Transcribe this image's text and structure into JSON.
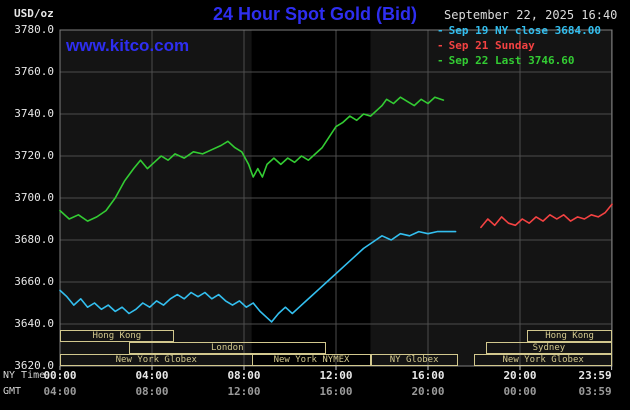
{
  "header": {
    "units": "USD/oz",
    "title": "24 Hour Spot Gold (Bid)",
    "site": "www.kitco.com",
    "datetime": "September 22, 2025 16:40"
  },
  "colors": {
    "background": "#000000",
    "title_blue": "#2e2ef0",
    "link_blue": "#2e2ef0",
    "date_text": "#dcdcdc",
    "axis_text": "#e8e8e8",
    "gmt_text": "#9a9a9a",
    "caption_text": "#d5d5d5",
    "session_tan": "#d2c88e",
    "grid": "#4d4d4d",
    "border": "#7e7e7e",
    "tick": "#c8c8c8",
    "plot_bg": "#141414",
    "nymex_band": "#000000"
  },
  "chart_data": {
    "type": "line",
    "title": "24 Hour Spot Gold (Bid)",
    "ylabel": "USD/oz",
    "ylim": [
      3620,
      3780
    ],
    "xlim_hours": [
      0,
      24
    ],
    "grid": true,
    "legend_position": "top-right",
    "legend_marker": "-",
    "y_ticks": [
      {
        "value": 3780,
        "label": "3780.0"
      },
      {
        "value": 3760,
        "label": "3760.0"
      },
      {
        "value": 3740,
        "label": "3740.0"
      },
      {
        "value": 3720,
        "label": "3720.0"
      },
      {
        "value": 3700,
        "label": "3700.0"
      },
      {
        "value": 3680,
        "label": "3680.0"
      },
      {
        "value": 3660,
        "label": "3660.0"
      },
      {
        "value": 3640,
        "label": "3640.0"
      },
      {
        "value": 3620,
        "label": "3620.0"
      }
    ],
    "x_axis_row_labels": [
      "NY Time",
      "GMT"
    ],
    "x_ticks": [
      {
        "hour": 0,
        "ny": "00:00",
        "gmt": "04:00"
      },
      {
        "hour": 4,
        "ny": "04:00",
        "gmt": "08:00"
      },
      {
        "hour": 8,
        "ny": "08:00",
        "gmt": "12:00"
      },
      {
        "hour": 12,
        "ny": "12:00",
        "gmt": "16:00"
      },
      {
        "hour": 16,
        "ny": "16:00",
        "gmt": "20:00"
      },
      {
        "hour": 20,
        "ny": "20:00",
        "gmt": "00:00"
      },
      {
        "hour": 23.983,
        "ny": "23:59",
        "gmt": "03:59"
      }
    ],
    "nymex_band_hours": [
      8.33,
      13.5
    ],
    "series": [
      {
        "name": "Sep 19",
        "legend_label": "Sep 19 NY close 3684.00",
        "color": "#33bfef",
        "points": [
          [
            0,
            3656
          ],
          [
            0.3,
            3653
          ],
          [
            0.6,
            3649
          ],
          [
            0.9,
            3652
          ],
          [
            1.2,
            3648
          ],
          [
            1.5,
            3650
          ],
          [
            1.8,
            3647
          ],
          [
            2.1,
            3649
          ],
          [
            2.4,
            3646
          ],
          [
            2.7,
            3648
          ],
          [
            3,
            3645
          ],
          [
            3.3,
            3647
          ],
          [
            3.6,
            3650
          ],
          [
            3.9,
            3648
          ],
          [
            4.2,
            3651
          ],
          [
            4.5,
            3649
          ],
          [
            4.8,
            3652
          ],
          [
            5.1,
            3654
          ],
          [
            5.4,
            3652
          ],
          [
            5.7,
            3655
          ],
          [
            6,
            3653
          ],
          [
            6.3,
            3655
          ],
          [
            6.6,
            3652
          ],
          [
            6.9,
            3654
          ],
          [
            7.2,
            3651
          ],
          [
            7.5,
            3649
          ],
          [
            7.8,
            3651
          ],
          [
            8.1,
            3648
          ],
          [
            8.4,
            3650
          ],
          [
            8.7,
            3646
          ],
          [
            9,
            3643
          ],
          [
            9.2,
            3641
          ],
          [
            9.5,
            3645
          ],
          [
            9.8,
            3648
          ],
          [
            10.1,
            3645
          ],
          [
            10.4,
            3648
          ],
          [
            10.7,
            3651
          ],
          [
            11,
            3654
          ],
          [
            11.3,
            3657
          ],
          [
            11.6,
            3660
          ],
          [
            12,
            3664
          ],
          [
            12.4,
            3668
          ],
          [
            12.8,
            3672
          ],
          [
            13.2,
            3676
          ],
          [
            13.6,
            3679
          ],
          [
            14,
            3682
          ],
          [
            14.4,
            3680
          ],
          [
            14.8,
            3683
          ],
          [
            15.2,
            3682
          ],
          [
            15.6,
            3684
          ],
          [
            16,
            3683
          ],
          [
            16.4,
            3684
          ],
          [
            16.8,
            3684
          ],
          [
            17.2,
            3684
          ]
        ]
      },
      {
        "name": "Sep 21",
        "legend_label": "Sep 21 Sunday",
        "color": "#f44242",
        "points": [
          [
            18.3,
            3686
          ],
          [
            18.6,
            3690
          ],
          [
            18.9,
            3687
          ],
          [
            19.2,
            3691
          ],
          [
            19.5,
            3688
          ],
          [
            19.8,
            3687
          ],
          [
            20.1,
            3690
          ],
          [
            20.4,
            3688
          ],
          [
            20.7,
            3691
          ],
          [
            21,
            3689
          ],
          [
            21.3,
            3692
          ],
          [
            21.6,
            3690
          ],
          [
            21.9,
            3692
          ],
          [
            22.2,
            3689
          ],
          [
            22.5,
            3691
          ],
          [
            22.8,
            3690
          ],
          [
            23.1,
            3692
          ],
          [
            23.4,
            3691
          ],
          [
            23.7,
            3693
          ],
          [
            24,
            3697
          ]
        ]
      },
      {
        "name": "Sep 22",
        "legend_label": "Sep 22 Last 3746.60",
        "color": "#33cc33",
        "points": [
          [
            0,
            3694
          ],
          [
            0.4,
            3690
          ],
          [
            0.8,
            3692
          ],
          [
            1.2,
            3689
          ],
          [
            1.6,
            3691
          ],
          [
            2,
            3694
          ],
          [
            2.4,
            3700
          ],
          [
            2.8,
            3708
          ],
          [
            3.2,
            3714
          ],
          [
            3.5,
            3718
          ],
          [
            3.8,
            3714
          ],
          [
            4.1,
            3717
          ],
          [
            4.4,
            3720
          ],
          [
            4.7,
            3718
          ],
          [
            5,
            3721
          ],
          [
            5.4,
            3719
          ],
          [
            5.8,
            3722
          ],
          [
            6.2,
            3721
          ],
          [
            6.6,
            3723
          ],
          [
            7,
            3725
          ],
          [
            7.3,
            3727
          ],
          [
            7.6,
            3724
          ],
          [
            7.9,
            3722
          ],
          [
            8.2,
            3716
          ],
          [
            8.4,
            3710
          ],
          [
            8.6,
            3714
          ],
          [
            8.8,
            3710
          ],
          [
            9,
            3716
          ],
          [
            9.3,
            3719
          ],
          [
            9.6,
            3716
          ],
          [
            9.9,
            3719
          ],
          [
            10.2,
            3717
          ],
          [
            10.5,
            3720
          ],
          [
            10.8,
            3718
          ],
          [
            11.1,
            3721
          ],
          [
            11.4,
            3724
          ],
          [
            11.7,
            3729
          ],
          [
            12,
            3734
          ],
          [
            12.3,
            3736
          ],
          [
            12.6,
            3739
          ],
          [
            12.9,
            3737
          ],
          [
            13.2,
            3740
          ],
          [
            13.5,
            3739
          ],
          [
            13.8,
            3742
          ],
          [
            14,
            3744
          ],
          [
            14.2,
            3747
          ],
          [
            14.5,
            3745
          ],
          [
            14.8,
            3748
          ],
          [
            15.1,
            3746
          ],
          [
            15.4,
            3744
          ],
          [
            15.7,
            3747
          ],
          [
            16,
            3745
          ],
          [
            16.3,
            3748
          ],
          [
            16.67,
            3746.6
          ]
        ]
      }
    ],
    "sessions": [
      {
        "label": "Hong Kong",
        "row": 0,
        "start": 0,
        "end": 4.9
      },
      {
        "label": "Hong Kong",
        "row": 0,
        "start": 20.3,
        "end": 23.97
      },
      {
        "label": "London",
        "row": 1,
        "start": 3.0,
        "end": 11.5
      },
      {
        "label": "Sydney",
        "row": 1,
        "start": 18.5,
        "end": 23.97
      },
      {
        "label": "New York Globex",
        "row": 2,
        "start": 0,
        "end": 8.33
      },
      {
        "label": "New York NYMEX",
        "row": 2,
        "start": 8.33,
        "end": 13.5
      },
      {
        "label": "NY Globex",
        "row": 2,
        "start": 13.5,
        "end": 17.25
      },
      {
        "label": "New York Globex",
        "row": 2,
        "start": 18.0,
        "end": 23.97
      }
    ]
  }
}
